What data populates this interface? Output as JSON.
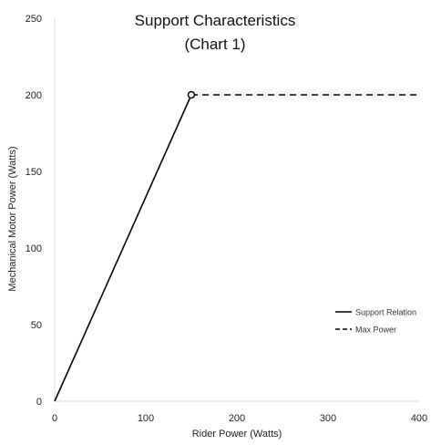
{
  "chart_data": {
    "type": "line",
    "title": [
      "Support Characteristics",
      "(Chart 1)"
    ],
    "xlabel": "Rider Power (Watts)",
    "ylabel": "Mechanical Motor Power (Watts)",
    "xlim": [
      0,
      400
    ],
    "ylim": [
      0,
      250
    ],
    "x_ticks": [
      0,
      100,
      200,
      300,
      400
    ],
    "y_ticks": [
      0,
      50,
      100,
      150,
      200,
      250
    ],
    "grid": false,
    "legend_position": "right",
    "series": [
      {
        "name": "Support Relation",
        "style": "solid",
        "color": "#000000",
        "x": [
          0,
          150
        ],
        "y": [
          0,
          200
        ]
      },
      {
        "name": "Max Power",
        "style": "dashed",
        "color": "#000000",
        "x": [
          150,
          400
        ],
        "y": [
          200,
          200
        ]
      }
    ],
    "markers": [
      {
        "x": 150,
        "y": 200,
        "shape": "open-circle"
      }
    ]
  }
}
